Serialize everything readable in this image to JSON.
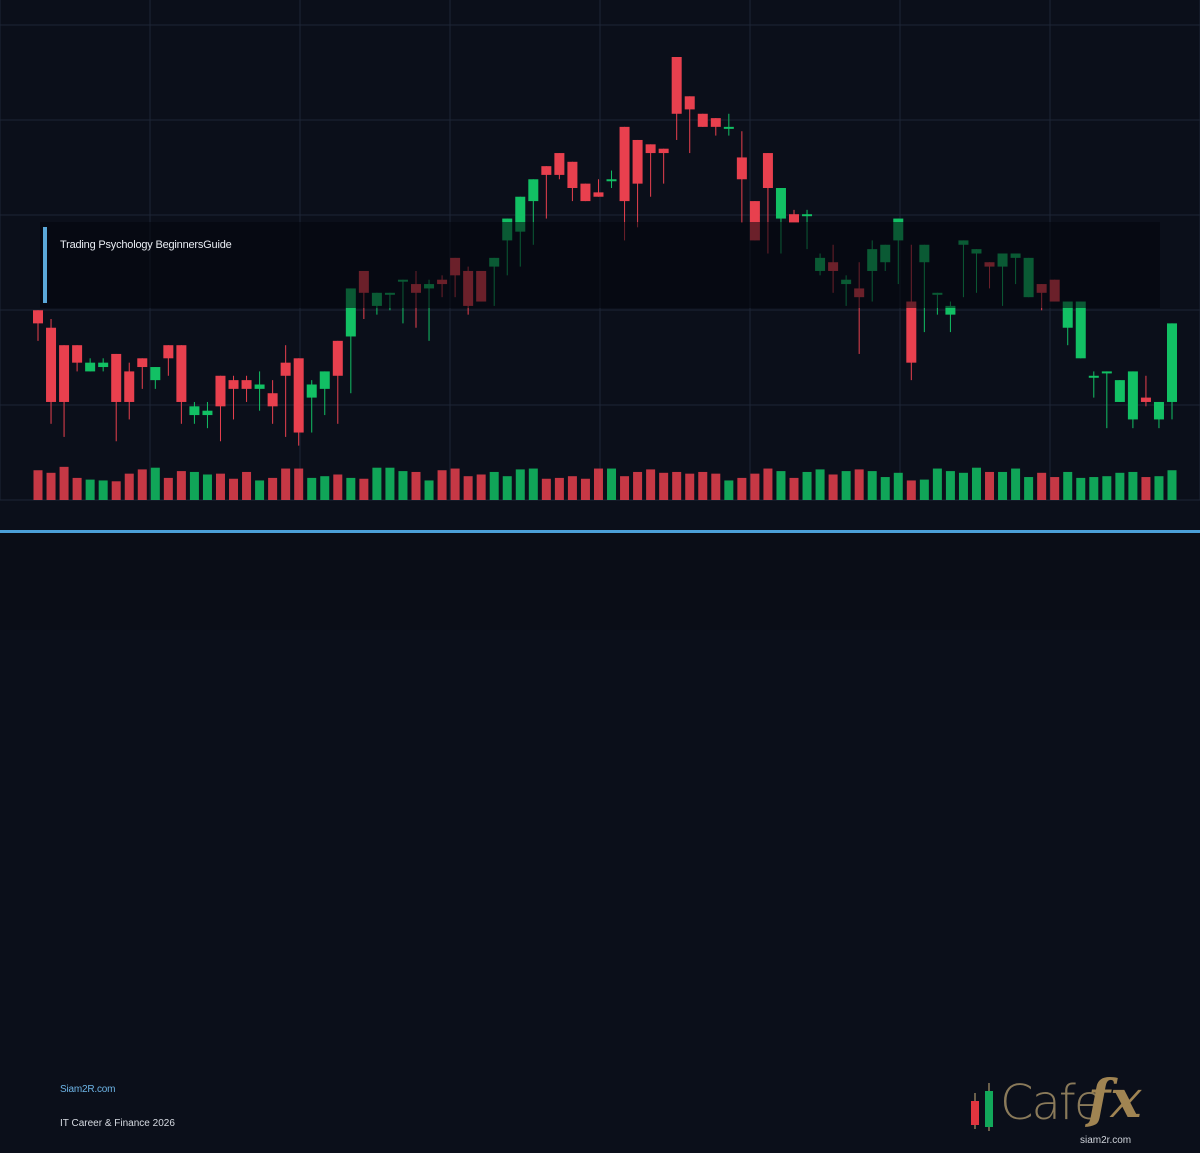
{
  "chart_data": {
    "type": "candlestick",
    "title": "Trading Psychology BeginnersGuide",
    "xlabel": "",
    "ylabel": "",
    "grid": true,
    "legend": "none",
    "colors": {
      "up": "#12c064",
      "down": "#e8404e",
      "grid": "#1e2536",
      "background": "#0b0f1a"
    },
    "ohlc": [
      [
        142,
        142,
        135,
        139
      ],
      [
        138,
        140,
        116,
        121
      ],
      [
        134,
        133,
        113,
        121
      ],
      [
        134,
        133,
        128,
        130
      ],
      [
        128,
        131,
        128,
        130
      ],
      [
        129,
        131,
        128,
        130
      ],
      [
        132,
        131,
        112,
        121
      ],
      [
        128,
        130,
        117,
        121
      ],
      [
        131,
        131,
        124,
        129
      ],
      [
        126,
        129,
        124,
        129
      ],
      [
        134,
        133,
        127,
        131
      ],
      [
        134,
        133,
        116,
        121
      ],
      [
        118,
        121,
        116,
        120
      ],
      [
        118,
        121,
        115,
        119
      ],
      [
        127,
        121,
        112,
        120
      ],
      [
        126,
        127,
        117,
        124
      ],
      [
        126,
        127,
        121,
        124
      ],
      [
        124,
        128,
        119,
        125
      ],
      [
        123,
        126,
        116,
        120
      ],
      [
        130,
        134,
        113,
        127
      ],
      [
        131,
        129,
        111,
        114
      ],
      [
        122,
        126,
        114,
        125
      ],
      [
        124,
        128,
        118,
        128
      ],
      [
        135,
        134,
        116,
        127
      ],
      [
        136,
        147,
        123,
        147
      ],
      [
        151,
        149,
        140,
        146
      ],
      [
        143,
        145,
        141,
        146
      ],
      [
        146,
        144,
        142,
        146
      ],
      [
        149,
        145,
        139,
        149
      ],
      [
        148,
        151,
        138,
        146
      ],
      [
        147,
        149,
        135,
        148
      ],
      [
        149,
        150,
        145,
        148
      ],
      [
        154,
        152,
        145,
        150
      ],
      [
        151,
        152,
        141,
        143
      ],
      [
        151,
        147,
        145,
        144
      ],
      [
        152,
        148,
        143,
        154
      ],
      [
        158,
        161,
        150,
        163
      ],
      [
        160,
        161,
        152,
        168
      ],
      [
        167,
        168,
        157,
        172
      ],
      [
        175,
        172,
        163,
        173
      ],
      [
        178,
        173,
        172,
        173
      ],
      [
        176,
        172,
        167,
        170
      ],
      [
        171,
        167,
        169,
        167
      ],
      [
        169,
        172,
        168,
        168
      ],
      [
        172,
        174,
        170,
        172
      ],
      [
        184,
        174,
        158,
        167
      ],
      [
        181,
        176,
        161,
        171
      ],
      [
        180,
        178,
        168,
        178
      ],
      [
        179,
        175,
        171,
        178
      ],
      [
        200,
        184,
        181,
        187
      ],
      [
        191,
        186,
        178,
        188
      ],
      [
        187,
        185,
        184,
        184
      ],
      [
        186,
        183,
        182,
        184
      ],
      [
        184,
        187,
        182,
        184
      ],
      [
        177,
        183,
        162,
        172
      ],
      [
        167,
        167,
        165,
        158
      ],
      [
        178,
        159,
        155,
        170
      ],
      [
        163,
        167,
        155,
        170
      ],
      [
        164,
        165,
        164,
        162
      ],
      [
        164,
        165,
        156,
        164
      ],
      [
        151,
        155,
        150,
        154
      ],
      [
        153,
        157,
        146,
        151
      ],
      [
        148,
        150,
        143,
        149
      ],
      [
        147,
        153,
        132,
        145
      ],
      [
        151,
        158,
        144,
        156
      ],
      [
        153,
        155,
        151,
        157
      ],
      [
        158,
        158,
        148,
        163
      ],
      [
        144,
        157,
        126,
        130
      ],
      [
        153,
        142,
        137,
        157
      ],
      [
        146,
        138,
        141,
        146
      ],
      [
        141,
        144,
        137,
        143
      ],
      [
        157,
        154,
        145,
        158
      ],
      [
        155,
        155,
        146,
        156
      ],
      [
        153,
        150,
        147,
        152
      ],
      [
        152,
        152,
        143,
        155
      ],
      [
        154,
        153,
        148,
        155
      ],
      [
        145,
        152,
        145,
        154
      ],
      [
        148,
        146,
        142,
        146
      ],
      [
        149,
        144,
        148,
        144
      ],
      [
        138,
        144,
        134,
        144
      ],
      [
        131,
        144,
        131,
        144
      ],
      [
        127,
        128,
        122,
        127
      ],
      [
        128,
        128,
        115,
        128
      ],
      [
        121,
        124,
        121,
        126
      ],
      [
        117,
        128,
        115,
        128
      ],
      [
        122,
        127,
        120,
        121
      ],
      [
        117,
        117,
        115,
        121
      ],
      [
        121,
        135,
        117,
        139
      ]
    ],
    "volumes": [
      35,
      32,
      39,
      26,
      24,
      23,
      22,
      31,
      36,
      38,
      26,
      34,
      33,
      30,
      31,
      25,
      33,
      23,
      26,
      37,
      37,
      26,
      28,
      30,
      26,
      25,
      38,
      38,
      34,
      33,
      23,
      35,
      37,
      28,
      30,
      33,
      28,
      36,
      37,
      25,
      26,
      28,
      25,
      37,
      37,
      28,
      33,
      36,
      32,
      33,
      31,
      33,
      31,
      23,
      26,
      31,
      37,
      34,
      26,
      33,
      36,
      30,
      34,
      36,
      34,
      27,
      32,
      23,
      24,
      37,
      34,
      32,
      38,
      33,
      33,
      37,
      27,
      32,
      27,
      33,
      26,
      27,
      28,
      32,
      33,
      27,
      28,
      35
    ]
  },
  "footer": {
    "site": "Siam2R.com",
    "tagline": "IT Career & Finance 2026"
  },
  "logo": {
    "word": "Cafe",
    "fx": "fx",
    "url": "siam2r.com",
    "icon": "candlestick-logo-icon"
  }
}
